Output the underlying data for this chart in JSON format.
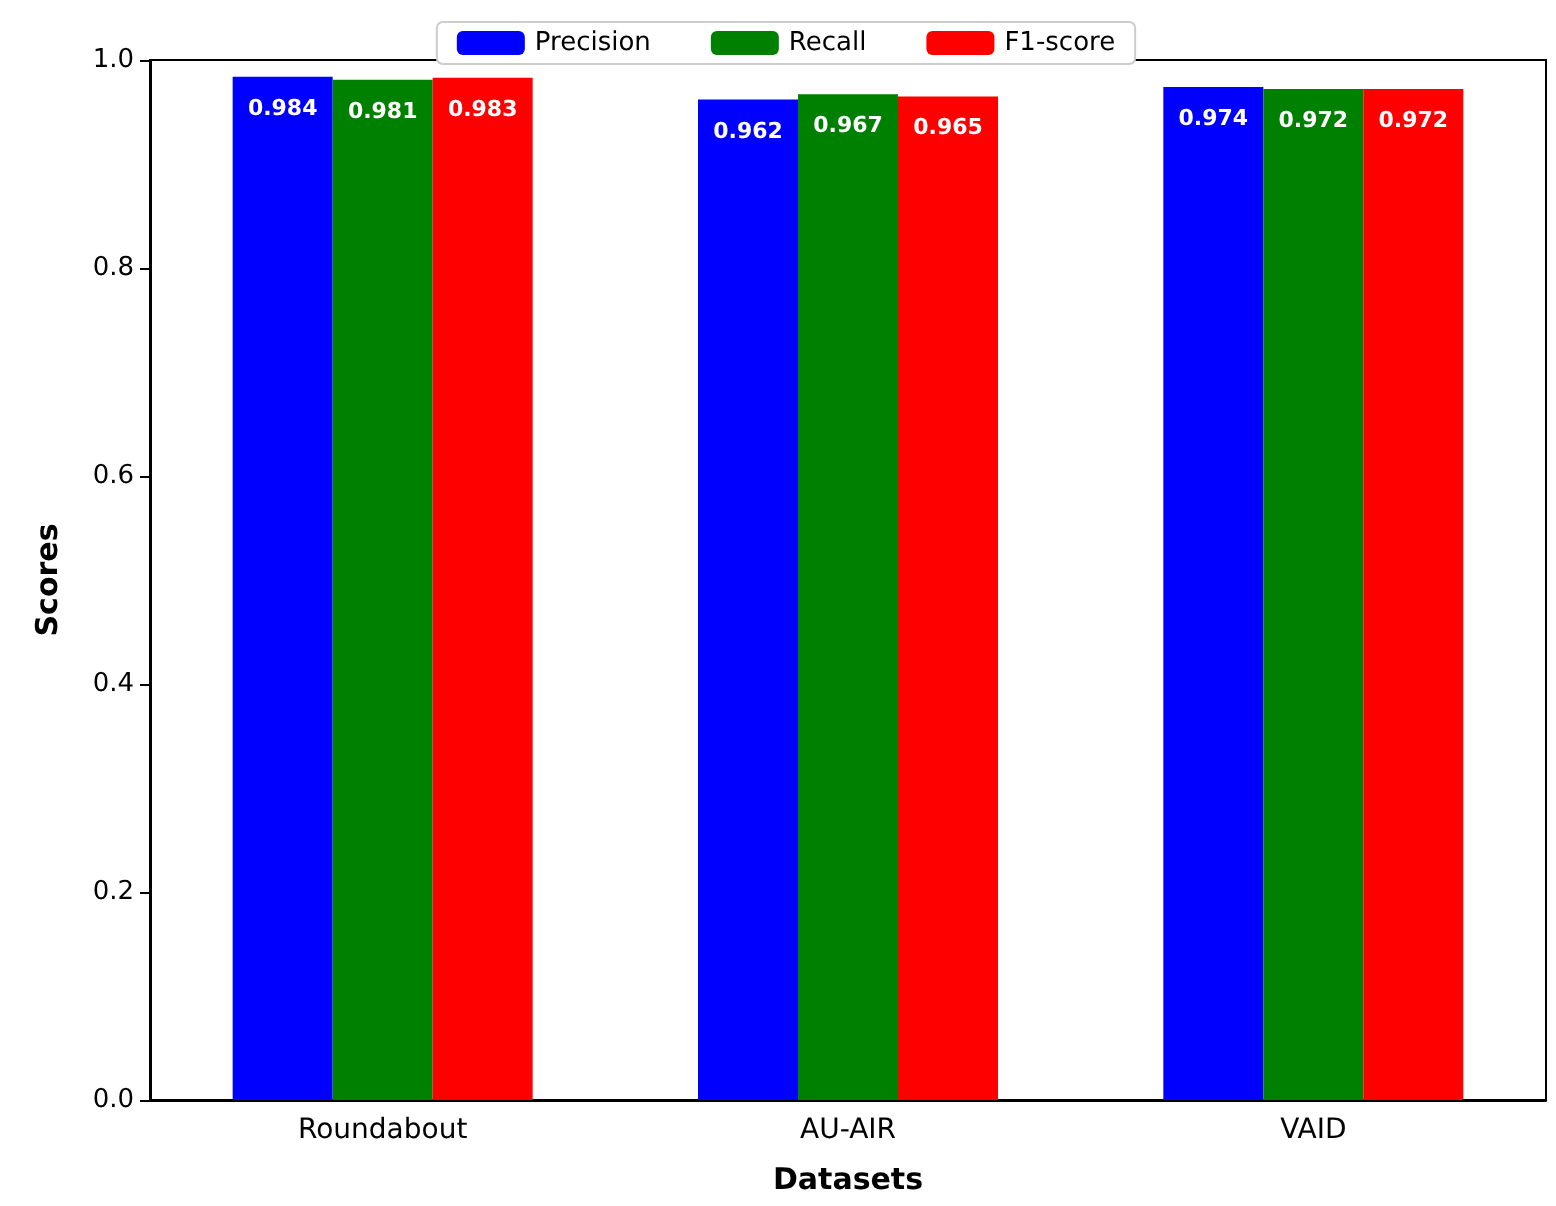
{
  "chart_data": {
    "type": "bar",
    "xlabel": "Datasets",
    "ylabel": "Scores",
    "categories": [
      "Roundabout",
      "AU-AIR",
      "VAID"
    ],
    "series": [
      {
        "name": "Precision",
        "color": "#0000ff",
        "values": [
          0.984,
          0.962,
          0.974
        ]
      },
      {
        "name": "Recall",
        "color": "#008000",
        "values": [
          0.981,
          0.967,
          0.972
        ]
      },
      {
        "name": "F1-score",
        "color": "#ff0000",
        "values": [
          0.983,
          0.965,
          0.972
        ]
      }
    ],
    "ylim": [
      0,
      1
    ],
    "yticks": [
      {
        "value": 0,
        "label": "0.0"
      },
      {
        "value": 0.2,
        "label": "0.2"
      },
      {
        "value": 0.4,
        "label": "0.4"
      },
      {
        "value": 0.6,
        "label": "0.6"
      },
      {
        "value": 0.8,
        "label": "0.8"
      },
      {
        "value": 1,
        "label": "1.0"
      }
    ],
    "data_labels": true,
    "legend": "top",
    "grid": false
  }
}
